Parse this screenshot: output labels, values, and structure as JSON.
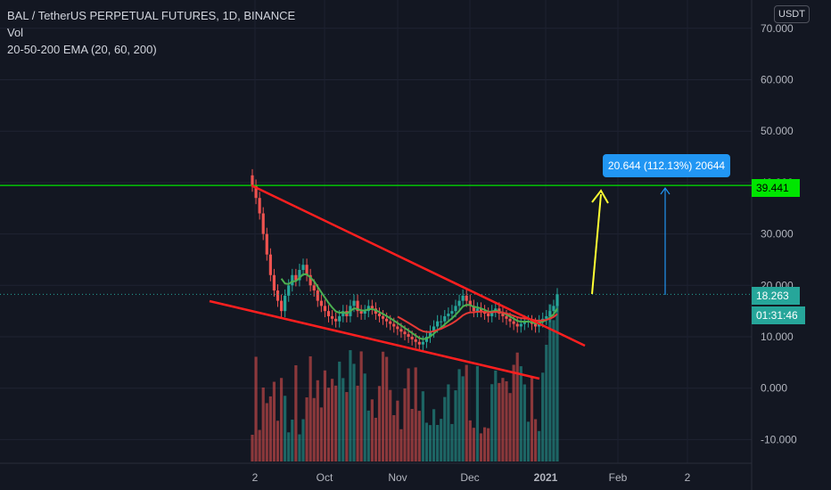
{
  "legend": {
    "symbol": "BAL / TetherUS PERPETUAL FUTURES, 1D, BINANCE",
    "volume": "Vol",
    "ema": "20-50-200 EMA (20, 60, 200)"
  },
  "currency_button": "USDT",
  "price_tags": {
    "horizontal_line": "39.441",
    "last_price": "18.263",
    "countdown": "01:31:46"
  },
  "measurement": {
    "label": "20.644 (112.13%) 20644"
  },
  "colors": {
    "background": "#131722",
    "up": "#26a69a",
    "down": "#ef5350",
    "wedge": "#ff1f1f",
    "horizontal_line": "#00e600",
    "projection_arrow": "#ffff33",
    "measure_arrow": "#2196f3",
    "ema_fast": "#4caf50",
    "ema_slow": "#e53935"
  },
  "chart_data": {
    "type": "candlestick",
    "title": "BAL / TetherUS PERPETUAL FUTURES, 1D, BINANCE",
    "y_axis_ticks": [
      "70.000",
      "60.000",
      "50.000",
      "40.000",
      "30.000",
      "20.000",
      "10.000",
      "0.000",
      "-10.000"
    ],
    "y_axis_tick_values": [
      70,
      60,
      50,
      40,
      30,
      20,
      10,
      0,
      -10
    ],
    "x_axis_ticks": [
      "2",
      "Oct",
      "Nov",
      "Dec",
      "2021",
      "Feb",
      "2"
    ],
    "ylim": [
      -14,
      76
    ],
    "grid": true,
    "horizontal_line": 39.441,
    "last_price": 18.263,
    "measurement_delta": 20.644,
    "measurement_percent": 112.13,
    "candle_closes": [
      39.4,
      37,
      34,
      30,
      26,
      22,
      19,
      17,
      15,
      18,
      20,
      22,
      21,
      23,
      24,
      22,
      20,
      19,
      17,
      16,
      15,
      14,
      13.5,
      13,
      14,
      15,
      14,
      16,
      17,
      15,
      14.5,
      15,
      16,
      15.5,
      14.5,
      14,
      13.5,
      13,
      12.5,
      12,
      11.5,
      11,
      10.5,
      10,
      9.5,
      9,
      8.5,
      9,
      10,
      11,
      12,
      13,
      13,
      14,
      14.5,
      15,
      16,
      17,
      18,
      17,
      16,
      15,
      15.5,
      15,
      14.5,
      14,
      15,
      15.5,
      14.5,
      14,
      13.5,
      13,
      12.5,
      12,
      12.5,
      13,
      13,
      12.5,
      12,
      13,
      13.5,
      14,
      15,
      16,
      18.263
    ],
    "volume_scale_reference": "sub-pane overlay, bottom aligned"
  }
}
